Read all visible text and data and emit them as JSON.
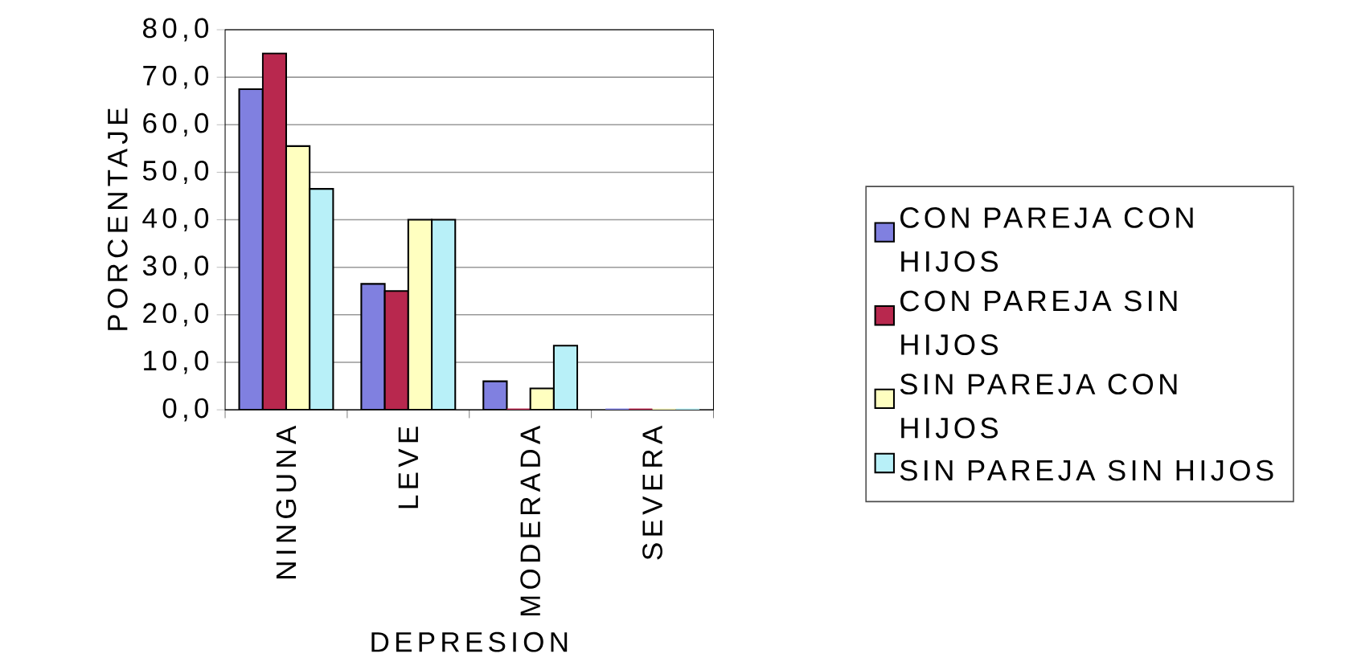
{
  "chart_data": {
    "type": "bar",
    "xlabel": "DEPRESION",
    "ylabel": "PORCENTAJE",
    "categories": [
      "NINGUNA",
      "LEVE",
      "MODERADA",
      "SEVERA"
    ],
    "series": [
      {
        "name": "CON PAREJA CON HIJOS",
        "color": "#8080e0",
        "values": [
          67.5,
          26.5,
          6.0,
          0
        ]
      },
      {
        "name": "CON PAREJA SIN HIJOS",
        "color": "#b8284e",
        "values": [
          75.0,
          25.0,
          0,
          0
        ]
      },
      {
        "name": "SIN PAREJA CON HIJOS",
        "color": "#ffffc0",
        "values": [
          55.5,
          40.0,
          4.5,
          0
        ]
      },
      {
        "name": "SIN PAREJA SIN HIJOS",
        "color": "#b8f0f8",
        "values": [
          46.5,
          40.0,
          13.5,
          0
        ]
      }
    ],
    "ylim": [
      0,
      80
    ],
    "yticks": [
      {
        "value": 0,
        "label": "0,0"
      },
      {
        "value": 10,
        "label": "10,0"
      },
      {
        "value": 20,
        "label": "20,0"
      },
      {
        "value": 30,
        "label": "30,0"
      },
      {
        "value": 40,
        "label": "40,0"
      },
      {
        "value": 50,
        "label": "50,0"
      },
      {
        "value": 60,
        "label": "60,0"
      },
      {
        "value": 70,
        "label": "70,0"
      },
      {
        "value": 80,
        "label": "80,0"
      }
    ],
    "grid": "y",
    "legend": "right"
  }
}
